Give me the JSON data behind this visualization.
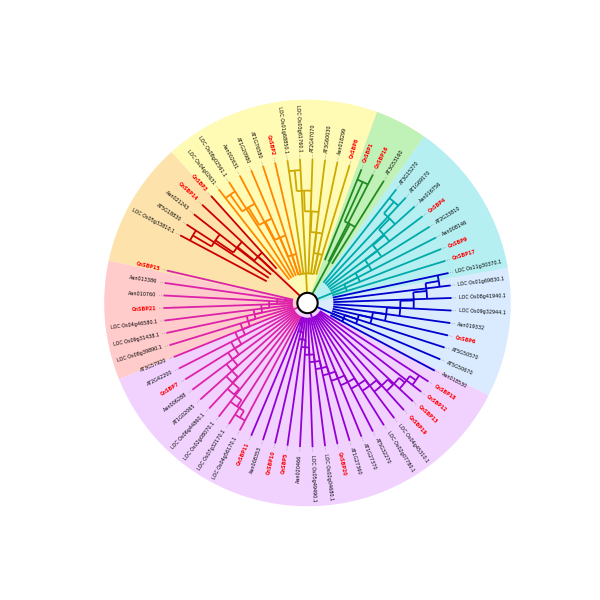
{
  "figsize": [
    6.0,
    6.0
  ],
  "dpi": 100,
  "xlim": [
    -1.25,
    1.25
  ],
  "ylim": [
    -1.25,
    1.25
  ],
  "r_tip": 0.78,
  "r_label": 0.82,
  "r_dot_end": 0.8,
  "center_circle_r": 0.055,
  "label_fontsize": 3.5,
  "branch_lw": 1.3,
  "dot_lw": 0.5,
  "sectors": [
    [
      55,
      132,
      "#fffaaa",
      0.88
    ],
    [
      132,
      168,
      "#fde0a0",
      0.88
    ],
    [
      168,
      202,
      "#ffc0c0",
      0.82
    ],
    [
      202,
      333,
      "#eec8ff",
      0.82
    ],
    [
      333,
      415,
      "#cce4ff",
      0.72
    ],
    [
      55,
      70,
      "#b8f0b8",
      0.88
    ],
    [
      10,
      55,
      "#b0f0f0",
      0.88
    ]
  ],
  "r_bg": 1.1,
  "leaves": [
    [
      "LOC Os04g02631",
      128,
      "#ff8800",
      "#000000"
    ],
    [
      "LOC Os08g02561.1",
      123,
      "#ff8800",
      "#000000"
    ],
    [
      "Aan002631",
      118,
      "#ff8800",
      "#000000"
    ],
    [
      "AT1G20980",
      113,
      "#ff8800",
      "#000000"
    ],
    [
      "AT1G76580",
      108,
      "#ff8800",
      "#000000"
    ],
    [
      "CnSBP2",
      103,
      "#ff8800",
      "#ff0000"
    ],
    [
      "LOC Os01g68850.1",
      98,
      "#ccaa00",
      "#000000"
    ],
    [
      "LOC Os03g61760.1",
      93,
      "#ccaa00",
      "#000000"
    ],
    [
      "AT2G47070",
      88,
      "#ccaa00",
      "#000000"
    ],
    [
      "AT3G60030",
      83,
      "#ccaa00",
      "#000000"
    ],
    [
      "Aan018299",
      78,
      "#ccaa00",
      "#000000"
    ],
    [
      "CnSBP8",
      73,
      "#ccaa00",
      "#ff0000"
    ],
    [
      "CnSBP1",
      68,
      "#228b22",
      "#ff0000"
    ],
    [
      "CnSBP16",
      63,
      "#228b22",
      "#ff0000"
    ],
    [
      "AT3G53160",
      58,
      "#228b22",
      "#000000"
    ],
    [
      "AT3G15270",
      52,
      "#00aaaa",
      "#000000"
    ],
    [
      "AT1G69170",
      47,
      "#00aaaa",
      "#000000"
    ],
    [
      "Aan016756",
      42,
      "#00aaaa",
      "#000000"
    ],
    [
      "CnSBP4",
      37,
      "#00aaaa",
      "#ff0000"
    ],
    [
      "AT2G33810",
      32,
      "#00aaaa",
      "#000000"
    ],
    [
      "Aan008146",
      27,
      "#00aaaa",
      "#000000"
    ],
    [
      "CnSBP9",
      22,
      "#00aaaa",
      "#ff0000"
    ],
    [
      "CnSBP17",
      17,
      "#00aaaa",
      "#ff0000"
    ],
    [
      "LOC Os11g30370.1",
      12,
      "#0000cc",
      "#000000"
    ],
    [
      "LOC Os01g69830.1",
      7,
      "#0000cc",
      "#000000"
    ],
    [
      "LOC Os08g41940.1",
      2,
      "#0000cc",
      "#000000"
    ],
    [
      "LOC Os09g32944.1",
      -3,
      "#0000cc",
      "#000000"
    ],
    [
      "Aan019332",
      -8,
      "#0000cc",
      "#000000"
    ],
    [
      "CnSBP6",
      -13,
      "#0000cc",
      "#ff0000"
    ],
    [
      "AT5G50570",
      -18,
      "#0000cc",
      "#000000"
    ],
    [
      "AT5G50670",
      -23,
      "#0000cc",
      "#000000"
    ],
    [
      "Aan018530",
      -28,
      "#0000cc",
      "#000000"
    ],
    [
      "CnSBP18",
      -33,
      "#9400d3",
      "#ff0000"
    ],
    [
      "CnSBP12",
      -38,
      "#9400d3",
      "#ff0000"
    ],
    [
      "CnSBP13",
      -43,
      "#9400d3",
      "#ff0000"
    ],
    [
      "CnSBP19",
      -48,
      "#9400d3",
      "#ff0000"
    ],
    [
      "LOC Os04g45310.1",
      -53,
      "#9400d3",
      "#000000"
    ],
    [
      "LOC Os02g07780.1",
      -58,
      "#9400d3",
      "#000000"
    ],
    [
      "AT5G32270",
      -63,
      "#9400d3",
      "#000000"
    ],
    [
      "AT1G27370",
      -68,
      "#9400d3",
      "#000000"
    ],
    [
      "AT1G27360",
      -73,
      "#9400d3",
      "#000000"
    ],
    [
      "CnSBP20",
      -78,
      "#9400d3",
      "#ff0000"
    ],
    [
      "LOC Os02g04680.1",
      -83,
      "#9400d3",
      "#000000"
    ],
    [
      "LOC Os05g49490.1",
      -88,
      "#9400d3",
      "#000000"
    ],
    [
      "Aan020466",
      -93,
      "#9400d3",
      "#000000"
    ],
    [
      "CnSBP5",
      -98,
      "#9400d3",
      "#ff0000"
    ],
    [
      "CnSBP10",
      -103,
      "#9400d3",
      "#ff0000"
    ],
    [
      "Aan008353",
      -108,
      "#9400d3",
      "#000000"
    ],
    [
      "CnSBP11",
      -113,
      "#9400d3",
      "#ff0000"
    ],
    [
      "LOC Os04g56170.1",
      -118,
      "#dd22aa",
      "#000000"
    ],
    [
      "LOC Os07g32170.1",
      -123,
      "#dd22aa",
      "#000000"
    ],
    [
      "LOC Os02g08070.1",
      -128,
      "#dd22aa",
      "#000000"
    ],
    [
      "LOC Os06g44860.1",
      -133,
      "#dd22aa",
      "#000000"
    ],
    [
      "AT1G02065",
      -138,
      "#dd22aa",
      "#000000"
    ],
    [
      "Aan006288",
      -143,
      "#dd22aa",
      "#000000"
    ],
    [
      "CnSBP7",
      -148,
      "#dd22aa",
      "#ff0000"
    ],
    [
      "AT2G42200",
      -153,
      "#dd22aa",
      "#000000"
    ],
    [
      "AT3G57920",
      -158,
      "#dd22aa",
      "#000000"
    ],
    [
      "LOC Os08g39890.1",
      -163,
      "#dd22aa",
      "#000000"
    ],
    [
      "LOC Os09g31438.1",
      -168,
      "#dd22aa",
      "#000000"
    ],
    [
      "LOC Os04g46580.1",
      -173,
      "#dd22aa",
      "#000000"
    ],
    [
      "CnSBP21",
      -178,
      "#dd22aa",
      "#ff0000"
    ],
    [
      "Aan010760",
      -183,
      "#dd22aa",
      "#000000"
    ],
    [
      "Aan013386",
      -188,
      "#dd22aa",
      "#000000"
    ],
    [
      "CnSBP15",
      -193,
      "#dd22aa",
      "#ff0000"
    ],
    [
      "LOC Os05g33810.1",
      -208,
      "#cc0000",
      "#000000"
    ],
    [
      "AT5G18830",
      -213,
      "#cc0000",
      "#000000"
    ],
    [
      "Aan021243",
      -218,
      "#cc0000",
      "#000000"
    ],
    [
      "CnSBP14",
      -223,
      "#cc0000",
      "#ff0000"
    ],
    [
      "CnSBP3",
      -228,
      "#cc0000",
      "#ff0000"
    ]
  ],
  "clades": [
    {
      "color": "#ff8800",
      "angles": [
        128,
        123,
        118,
        113,
        108,
        103
      ],
      "topology": "ladder_desc",
      "r_inner": 0.16
    },
    {
      "color": "#ccaa00",
      "angles": [
        98,
        93,
        88,
        83,
        78,
        73
      ],
      "topology": "ladder_desc",
      "r_inner": 0.16
    },
    {
      "color": "#228b22",
      "angles": [
        68,
        63,
        58
      ],
      "topology": "ladder_desc",
      "r_inner": 0.25
    },
    {
      "color": "#00aaaa",
      "angles": [
        52,
        47,
        42,
        37,
        32,
        27,
        22,
        17
      ],
      "topology": "ladder_desc",
      "r_inner": 0.14
    },
    {
      "color": "#0000cc",
      "angles": [
        12,
        7,
        2,
        -3,
        -8,
        -13,
        -18,
        -23,
        -28
      ],
      "topology": "ladder_desc",
      "r_inner": 0.14
    },
    {
      "color": "#9400d3",
      "angles": [
        -33,
        -38,
        -43,
        -48,
        -53,
        -58,
        -63,
        -68,
        -73,
        -78,
        -83,
        -88,
        -93,
        -98,
        -103,
        -108,
        -113
      ],
      "topology": "ladder_desc",
      "r_inner": 0.08
    },
    {
      "color": "#dd22aa",
      "angles": [
        -118,
        -123,
        -128,
        -133,
        -138,
        -143,
        -148,
        -153,
        -158,
        -163,
        -168,
        -173,
        -178,
        -183,
        -188,
        -193
      ],
      "topology": "ladder_desc",
      "r_inner": 0.08
    },
    {
      "color": "#cc0000",
      "angles": [
        -208,
        -213,
        -218,
        -223,
        -228
      ],
      "topology": "ladder_asc",
      "r_inner": 0.25
    }
  ]
}
